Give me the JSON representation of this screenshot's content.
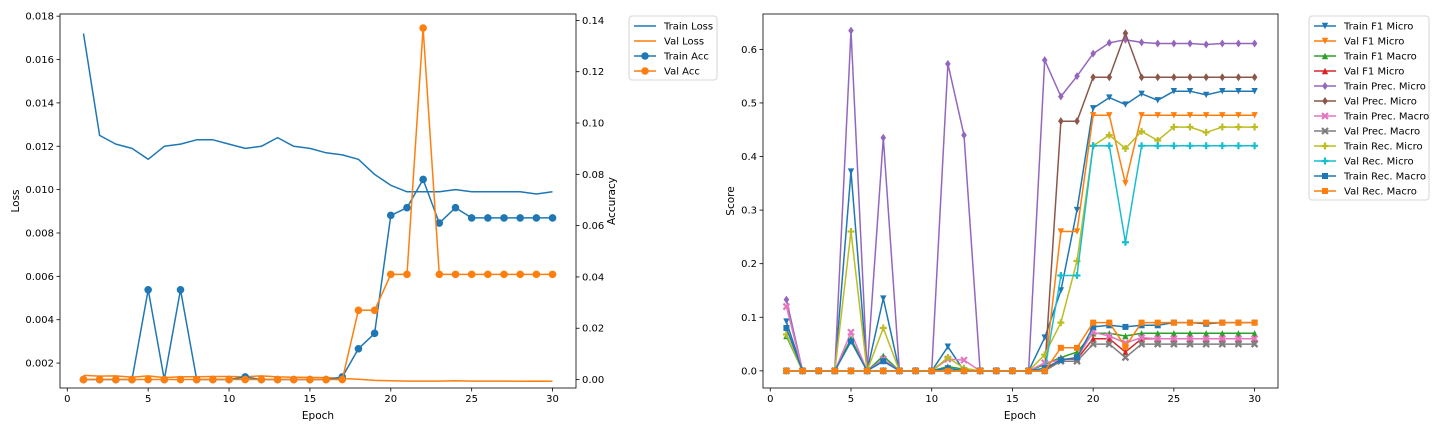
{
  "chart_data": [
    {
      "type": "line",
      "title": "",
      "xlabel": "Epoch",
      "ylabel": "Loss",
      "y2label": "Accuracy",
      "xlim": [
        -0.45,
        31.45
      ],
      "ylim": [
        0.00085,
        0.0181
      ],
      "y2lim": [
        -0.0033,
        0.1425
      ],
      "xticks": [
        "0",
        "5",
        "10",
        "15",
        "20",
        "25",
        "30"
      ],
      "yticks": [
        "0.002",
        "0.004",
        "0.006",
        "0.008",
        "0.010",
        "0.012",
        "0.014",
        "0.016",
        "0.018"
      ],
      "y2ticks": [
        "0.00",
        "0.02",
        "0.04",
        "0.06",
        "0.08",
        "0.10",
        "0.12",
        "0.14"
      ],
      "grid": false,
      "legend_position": "outside upper right",
      "x": [
        1,
        2,
        3,
        4,
        5,
        6,
        7,
        8,
        9,
        10,
        11,
        12,
        13,
        14,
        15,
        16,
        17,
        18,
        19,
        20,
        21,
        22,
        23,
        24,
        25,
        26,
        27,
        28,
        29,
        30
      ],
      "series": [
        {
          "name": "Train Loss",
          "axis": "left",
          "marker": "none",
          "color": "#1f77b4",
          "values": [
            0.0172,
            0.0125,
            0.0121,
            0.0119,
            0.0114,
            0.012,
            0.0121,
            0.0123,
            0.0123,
            0.0121,
            0.0119,
            0.012,
            0.0124,
            0.012,
            0.0119,
            0.0117,
            0.0116,
            0.0114,
            0.0107,
            0.0102,
            0.0099,
            0.0099,
            0.0099,
            0.01,
            0.0099,
            0.0099,
            0.0099,
            0.0099,
            0.0098,
            0.0099
          ]
        },
        {
          "name": "Val Loss",
          "axis": "left",
          "marker": "none",
          "color": "#ff7f0e",
          "values": [
            0.00143,
            0.0014,
            0.00141,
            0.00135,
            0.00141,
            0.00133,
            0.00137,
            0.00137,
            0.00138,
            0.00138,
            0.00137,
            0.00141,
            0.00136,
            0.00135,
            0.00134,
            0.00133,
            0.00129,
            0.00125,
            0.0012,
            0.00118,
            0.00117,
            0.00117,
            0.00117,
            0.00118,
            0.00117,
            0.00117,
            0.00117,
            0.00116,
            0.00117,
            0.00116
          ]
        },
        {
          "name": "Train Acc",
          "axis": "right",
          "marker": "circle",
          "color": "#1f77b4",
          "values": [
            0,
            0,
            0,
            0,
            0.035,
            0,
            0.035,
            0,
            0,
            0,
            0.001,
            0,
            0,
            0,
            0,
            0,
            0.001,
            0.012,
            0.018,
            0.064,
            0.067,
            0.078,
            0.061,
            0.067,
            0.063,
            0.063,
            0.063,
            0.063,
            0.063,
            0.063
          ]
        },
        {
          "name": "Val Acc",
          "axis": "right",
          "marker": "circle",
          "color": "#ff7f0e",
          "values": [
            0,
            0,
            0,
            0,
            0,
            0,
            0,
            0,
            0,
            0,
            0,
            0,
            0,
            0,
            0,
            0,
            0,
            0.027,
            0.027,
            0.041,
            0.041,
            0.137,
            0.041,
            0.041,
            0.041,
            0.041,
            0.041,
            0.041,
            0.041,
            0.041
          ]
        }
      ]
    },
    {
      "type": "line",
      "title": "",
      "xlabel": "Epoch",
      "ylabel": "Score",
      "xlim": [
        -0.45,
        31.45
      ],
      "ylim": [
        -0.032,
        0.666
      ],
      "xticks": [
        "0",
        "5",
        "10",
        "15",
        "20",
        "25",
        "30"
      ],
      "yticks": [
        "0.0",
        "0.1",
        "0.2",
        "0.3",
        "0.4",
        "0.5",
        "0.6"
      ],
      "grid": false,
      "legend_position": "outside upper right",
      "x": [
        1,
        2,
        3,
        4,
        5,
        6,
        7,
        8,
        9,
        10,
        11,
        12,
        13,
        14,
        15,
        16,
        17,
        18,
        19,
        20,
        21,
        22,
        23,
        24,
        25,
        26,
        27,
        28,
        29,
        30
      ],
      "series": [
        {
          "name": "Train F1 Micro",
          "marker": "triangle-down",
          "color": "#1f77b4",
          "values": [
            0.092,
            0,
            0,
            0,
            0.372,
            0,
            0.135,
            0,
            0,
            0,
            0.045,
            0,
            0,
            0,
            0,
            0,
            0.062,
            0.15,
            0.3,
            0.49,
            0.51,
            0.497,
            0.517,
            0.505,
            0.522,
            0.522,
            0.515,
            0.522,
            0.522,
            0.522
          ]
        },
        {
          "name": "Val F1 Micro",
          "marker": "triangle-down",
          "color": "#ff7f0e",
          "values": [
            0,
            0,
            0,
            0,
            0,
            0,
            0,
            0,
            0,
            0,
            0,
            0,
            0,
            0,
            0,
            0,
            0,
            0.26,
            0.26,
            0.477,
            0.477,
            0.35,
            0.477,
            0.477,
            0.477,
            0.477,
            0.477,
            0.477,
            0.477,
            0.477
          ]
        },
        {
          "name": "Train F1 Macro",
          "marker": "triangle-up",
          "color": "#2ca02c",
          "values": [
            0.065,
            0,
            0,
            0,
            0.06,
            0,
            0.028,
            0,
            0,
            0,
            0.008,
            0.003,
            0,
            0,
            0,
            0,
            0.012,
            0.025,
            0.035,
            0.07,
            0.07,
            0.065,
            0.07,
            0.07,
            0.07,
            0.07,
            0.07,
            0.07,
            0.07,
            0.07
          ]
        },
        {
          "name": "Val F1 Micro",
          "marker": "triangle-up",
          "color": "#d62728",
          "values": [
            0,
            0,
            0,
            0,
            0,
            0,
            0,
            0,
            0,
            0,
            0,
            0,
            0,
            0,
            0,
            0,
            0,
            0.022,
            0.022,
            0.06,
            0.06,
            0.035,
            0.06,
            0.06,
            0.06,
            0.06,
            0.06,
            0.06,
            0.06,
            0.06
          ]
        },
        {
          "name": "Train Prec. Micro",
          "marker": "diamond",
          "color": "#9467bd",
          "values": [
            0.133,
            0,
            0,
            0,
            0.635,
            0,
            0.435,
            0,
            0,
            0,
            0.573,
            0.44,
            0,
            0,
            0,
            0,
            0.58,
            0.512,
            0.55,
            0.592,
            0.612,
            0.618,
            0.613,
            0.611,
            0.611,
            0.611,
            0.609,
            0.611,
            0.611,
            0.611
          ]
        },
        {
          "name": "Val Prec. Micro",
          "marker": "diamond",
          "color": "#8c564b",
          "values": [
            0,
            0,
            0,
            0,
            0,
            0,
            0,
            0,
            0,
            0,
            0,
            0,
            0,
            0,
            0,
            0,
            0,
            0.466,
            0.466,
            0.548,
            0.548,
            0.63,
            0.548,
            0.548,
            0.548,
            0.548,
            0.548,
            0.548,
            0.548,
            0.548
          ]
        },
        {
          "name": "Train Prec. Macro",
          "marker": "x",
          "color": "#e377c2",
          "values": [
            0.12,
            0,
            0,
            0,
            0.072,
            0,
            0.022,
            0,
            0,
            0,
            0.022,
            0.02,
            0,
            0,
            0,
            0,
            0.015,
            0.02,
            0.025,
            0.072,
            0.065,
            0.052,
            0.062,
            0.06,
            0.06,
            0.06,
            0.06,
            0.06,
            0.06,
            0.06
          ]
        },
        {
          "name": "Val Prec. Macro",
          "marker": "x",
          "color": "#7f7f7f",
          "values": [
            0,
            0,
            0,
            0,
            0,
            0,
            0,
            0,
            0,
            0,
            0,
            0,
            0,
            0,
            0,
            0,
            0,
            0.018,
            0.018,
            0.05,
            0.05,
            0.025,
            0.05,
            0.05,
            0.05,
            0.05,
            0.05,
            0.05,
            0.05,
            0.05
          ]
        },
        {
          "name": "Train Rec. Micro",
          "marker": "plus",
          "color": "#bcbd22",
          "values": [
            0.068,
            0,
            0,
            0,
            0.26,
            0,
            0.08,
            0,
            0,
            0,
            0.025,
            0.005,
            0,
            0,
            0,
            0,
            0.03,
            0.09,
            0.205,
            0.42,
            0.44,
            0.415,
            0.447,
            0.43,
            0.455,
            0.455,
            0.445,
            0.455,
            0.455,
            0.455
          ]
        },
        {
          "name": "Val Rec. Micro",
          "marker": "plus",
          "color": "#17becf",
          "values": [
            0,
            0,
            0,
            0,
            0,
            0,
            0,
            0,
            0,
            0,
            0,
            0,
            0,
            0,
            0,
            0,
            0,
            0.178,
            0.178,
            0.42,
            0.42,
            0.24,
            0.42,
            0.42,
            0.42,
            0.42,
            0.42,
            0.42,
            0.42,
            0.42
          ]
        },
        {
          "name": "Train Rec. Macro",
          "marker": "square",
          "color": "#1f77b4",
          "values": [
            0.08,
            0,
            0,
            0,
            0.055,
            0,
            0.018,
            0,
            0,
            0,
            0.005,
            0,
            0,
            0,
            0,
            0,
            0.005,
            0.02,
            0.025,
            0.082,
            0.085,
            0.082,
            0.085,
            0.085,
            0.09,
            0.09,
            0.088,
            0.09,
            0.09,
            0.09
          ]
        },
        {
          "name": "Val Rec. Macro",
          "marker": "square",
          "color": "#ff7f0e",
          "values": [
            0,
            0,
            0,
            0,
            0,
            0,
            0,
            0,
            0,
            0,
            0,
            0,
            0,
            0,
            0,
            0,
            0,
            0.043,
            0.043,
            0.09,
            0.09,
            0.045,
            0.09,
            0.09,
            0.09,
            0.09,
            0.09,
            0.09,
            0.09,
            0.09
          ]
        }
      ]
    }
  ]
}
